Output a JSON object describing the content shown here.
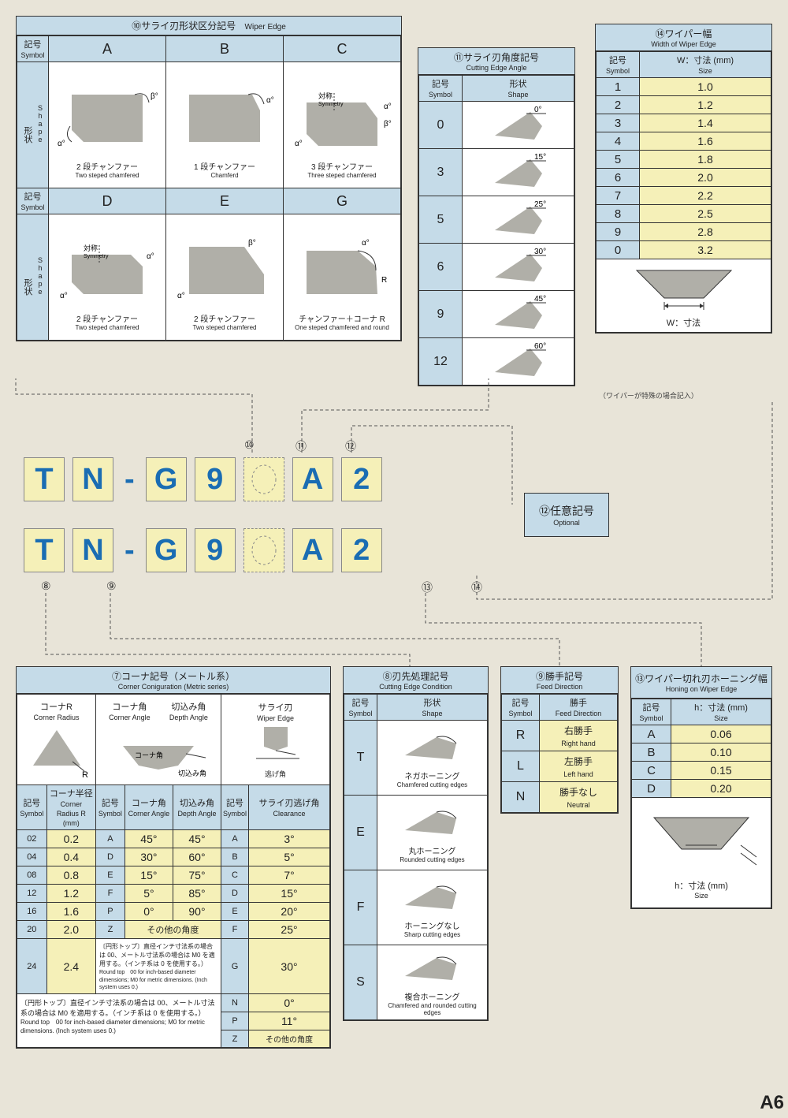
{
  "page_tag": "A6",
  "colors": {
    "header_blue": "#c5dbe8",
    "value_yellow": "#f5f0b8",
    "code_blue": "#1a6db3",
    "bg": "#e8e4d8",
    "shape_fill": "#b0afa8"
  },
  "panel10": {
    "title_jp": "⑩サライ刃形状区分記号",
    "title_en": "Wiper Edge",
    "col_symbol_jp": "記号",
    "col_symbol_en": "Symbol",
    "row_shape_jp": "形状",
    "row_shape_en": "Shape",
    "cols": [
      "A",
      "B",
      "C",
      "D",
      "E",
      "G"
    ],
    "captions": [
      {
        "jp": "2 段チャンファー",
        "en": "Two steped chamfered"
      },
      {
        "jp": "1 段チャンファー",
        "en": "Chamferd"
      },
      {
        "jp": "3 段チャンファー",
        "en": "Three steped chamfered"
      },
      {
        "jp": "2 段チャンファー",
        "en": "Two steped chamfered"
      },
      {
        "jp": "2 段チャンファー",
        "en": "Two steped chamfered"
      },
      {
        "jp": "チャンファー＋コーナ R",
        "en": "One steped chamfered and round"
      }
    ],
    "sym_label_jp": "対称",
    "sym_label_en": "Symmetry"
  },
  "panel11": {
    "title_jp": "⑪サライ刃角度記号",
    "title_en": "Cutting Edge Angle",
    "col1_jp": "記号",
    "col1_en": "Symbol",
    "col2_jp": "形状",
    "col2_en": "Shape",
    "rows": [
      {
        "sym": "0",
        "angle": "0°"
      },
      {
        "sym": "3",
        "angle": "15°"
      },
      {
        "sym": "5",
        "angle": "25°"
      },
      {
        "sym": "6",
        "angle": "30°"
      },
      {
        "sym": "9",
        "angle": "45°"
      },
      {
        "sym": "12",
        "angle": "60°"
      }
    ]
  },
  "panel14": {
    "title_jp": "⑭ワイパー幅",
    "title_en": "Width of Wiper Edge",
    "col1_jp": "記号",
    "col1_en": "Symbol",
    "col2": "W：寸法 (mm)",
    "col2_en": "Size",
    "rows": [
      {
        "s": "1",
        "v": "1.0"
      },
      {
        "s": "2",
        "v": "1.2"
      },
      {
        "s": "3",
        "v": "1.4"
      },
      {
        "s": "4",
        "v": "1.6"
      },
      {
        "s": "5",
        "v": "1.8"
      },
      {
        "s": "6",
        "v": "2.0"
      },
      {
        "s": "7",
        "v": "2.2"
      },
      {
        "s": "8",
        "v": "2.5"
      },
      {
        "s": "9",
        "v": "2.8"
      },
      {
        "s": "0",
        "v": "3.2"
      }
    ],
    "diag": "W：寸法",
    "note": "（ワイパーが特殊の場合記入）"
  },
  "code": {
    "row1": [
      "T",
      "N",
      "-",
      "G",
      "9",
      "",
      "A",
      "2"
    ],
    "row2": [
      "T",
      "N",
      "-",
      "G",
      "9",
      "",
      "A",
      "2"
    ],
    "top_nums": [
      "⑩",
      "⑪",
      "⑫"
    ],
    "bot_nums": [
      "⑧",
      "⑨",
      "⑬",
      "⑭"
    ]
  },
  "panel12": {
    "jp": "⑫任意記号",
    "en": "Optional"
  },
  "panel7": {
    "title_jp": "⑦コーナ記号（メートル系）",
    "title_en": "Corner Coniguration (Metric series)",
    "diag": {
      "d1_jp": "コーナR",
      "d1_en": "Corner Radius",
      "d1_lbl": "R",
      "d2_jp": "コーナ角",
      "d2_en": "Corner Angle",
      "d3_jp": "切込み角",
      "d3_en": "Depth Angle",
      "d2_inner": "コーナ角",
      "d3_inner": "切込み角",
      "d4_jp": "サライ刃",
      "d4_en": "Wiper Edge",
      "d4_lbl": "逃げ角"
    },
    "headers": {
      "c1": "記号",
      "c1e": "Symbol",
      "c2": "コーナ半径",
      "c2e": "Corner Radius R (mm)",
      "c3": "記号",
      "c3e": "Symbol",
      "c4": "コーナ角",
      "c4e": "Corner Angle",
      "c5": "切込み角",
      "c5e": "Depth Angle",
      "c6": "記号",
      "c6e": "Symbol",
      "c7": "サライ刃逃げ角",
      "c7e": "Clearance"
    },
    "left": [
      {
        "s": "02",
        "v": "0.2"
      },
      {
        "s": "04",
        "v": "0.4"
      },
      {
        "s": "08",
        "v": "0.8"
      },
      {
        "s": "12",
        "v": "1.2"
      },
      {
        "s": "16",
        "v": "1.6"
      },
      {
        "s": "20",
        "v": "2.0"
      },
      {
        "s": "24",
        "v": "2.4"
      }
    ],
    "mid": [
      {
        "s": "A",
        "a": "45°",
        "d": "45°"
      },
      {
        "s": "D",
        "a": "30°",
        "d": "60°"
      },
      {
        "s": "E",
        "a": "15°",
        "d": "75°"
      },
      {
        "s": "F",
        "a": "5°",
        "d": "85°"
      },
      {
        "s": "P",
        "a": "0°",
        "d": "90°"
      }
    ],
    "mid_extra": {
      "s": "Z",
      "txt": "その他の角度"
    },
    "right": [
      {
        "s": "A",
        "v": "3°"
      },
      {
        "s": "B",
        "v": "5°"
      },
      {
        "s": "C",
        "v": "7°"
      },
      {
        "s": "D",
        "v": "15°"
      },
      {
        "s": "E",
        "v": "20°"
      },
      {
        "s": "F",
        "v": "25°"
      },
      {
        "s": "G",
        "v": "30°"
      },
      {
        "s": "N",
        "v": "0°"
      },
      {
        "s": "P",
        "v": "11°"
      }
    ],
    "right_extra": {
      "s": "Z",
      "txt": "その他の角度"
    },
    "footnote_jp": "〔円形トップ〕直径インチ寸法系の場合は 00、メートル寸法系の場合は M0 を適用する。（インチ系は 0 を使用する。）",
    "footnote_en": "Round top　00 for inch-based diameter dimensions; M0 for metric dimensions. (Inch system uses 0.)"
  },
  "panel8": {
    "title_jp": "⑧刃先処理記号",
    "title_en": "Cutting Edge Condition",
    "col1_jp": "記号",
    "col1_en": "Symbol",
    "col2_jp": "形状",
    "col2_en": "Shape",
    "rows": [
      {
        "s": "T",
        "jp": "ネガホーニング",
        "en": "Chamfered cutting edges"
      },
      {
        "s": "E",
        "jp": "丸ホーニング",
        "en": "Rounded cutting edges"
      },
      {
        "s": "F",
        "jp": "ホーニングなし",
        "en": "Sharp cutting edges"
      },
      {
        "s": "S",
        "jp": "複合ホーニング",
        "en": "Chamfered and rounded cutting edges"
      }
    ]
  },
  "panel9": {
    "title_jp": "⑨勝手記号",
    "title_en": "Feed Direction",
    "col1_jp": "記号",
    "col1_en": "Symbol",
    "col2_jp": "勝手",
    "col2_en": "Feed Direction",
    "rows": [
      {
        "s": "R",
        "jp": "右勝手",
        "en": "Right hand"
      },
      {
        "s": "L",
        "jp": "左勝手",
        "en": "Left hand"
      },
      {
        "s": "N",
        "jp": "勝手なし",
        "en": "Neutral"
      }
    ]
  },
  "panel13": {
    "title_jp": "⑬ワイパー切れ刃ホーニング幅",
    "title_en": "Honing on Wiper Edge",
    "col1_jp": "記号",
    "col1_en": "Symbol",
    "col2": "h：寸法 (mm)",
    "col2_en": "Size",
    "rows": [
      {
        "s": "A",
        "v": "0.06"
      },
      {
        "s": "B",
        "v": "0.10"
      },
      {
        "s": "C",
        "v": "0.15"
      },
      {
        "s": "D",
        "v": "0.20"
      }
    ],
    "diag": "h：寸法 (mm)",
    "diag_en": "Size"
  }
}
